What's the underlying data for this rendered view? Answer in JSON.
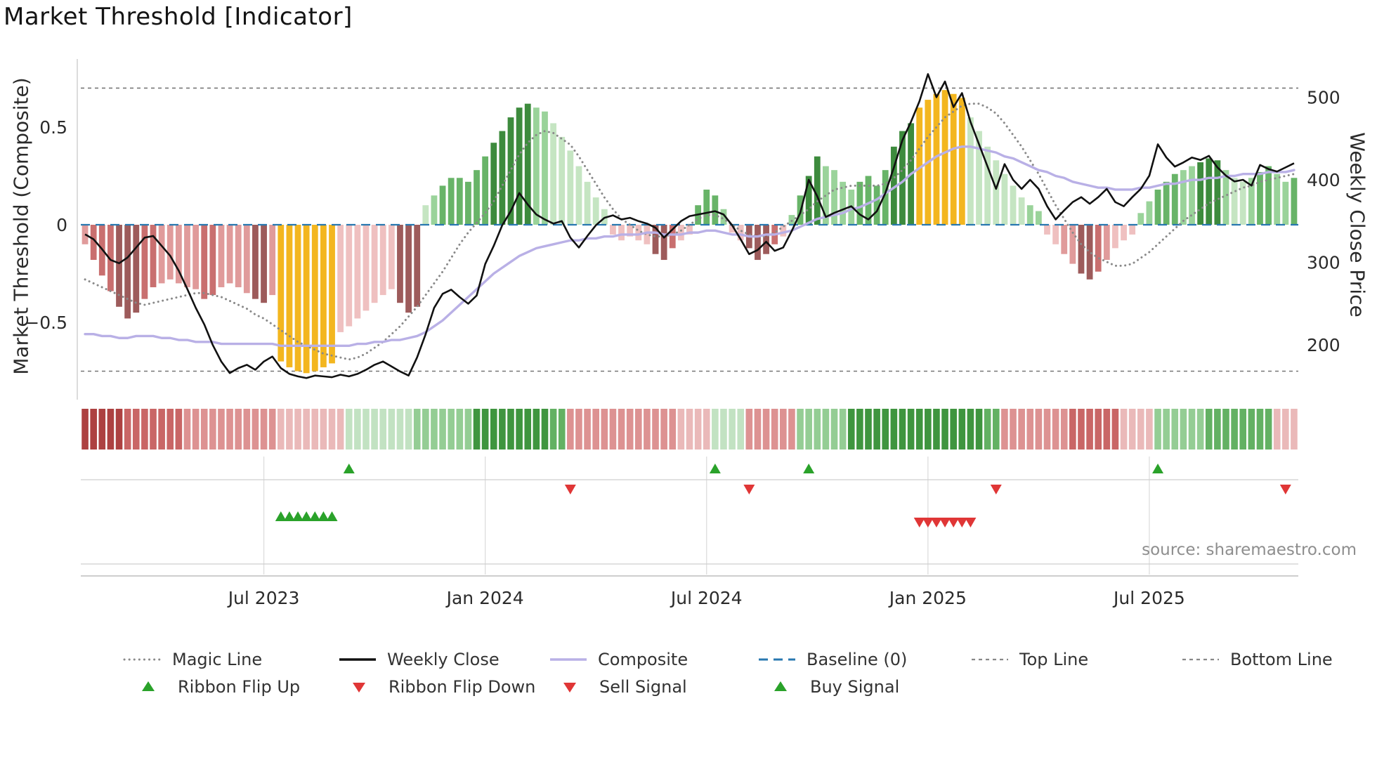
{
  "chart_data": {
    "type": "bar",
    "title": "Market Threshold [Indicator]",
    "source_text": "source: sharemaestro.com",
    "left_axis": {
      "label": "Market Threshold (Composite)",
      "ticks": [
        {
          "value": 0.5,
          "label": "0.5"
        },
        {
          "value": 0,
          "label": "0"
        },
        {
          "value": -0.5,
          "label": "−0.5"
        }
      ],
      "top_line": 0.7,
      "bottom_line": -0.75,
      "baseline": 0
    },
    "right_axis": {
      "label": "Weekly Close Price",
      "ticks": [
        {
          "value": 500,
          "label": "500"
        },
        {
          "value": 400,
          "label": "400"
        },
        {
          "value": 300,
          "label": "300"
        },
        {
          "value": 200,
          "label": "200"
        }
      ]
    },
    "x_ticks": [
      {
        "index": 21,
        "label": "Jul 2023"
      },
      {
        "index": 47,
        "label": "Jan 2024"
      },
      {
        "index": 73,
        "label": "Jul 2024"
      },
      {
        "index": 99,
        "label": "Jan 2025"
      },
      {
        "index": 125,
        "label": "Jul 2025"
      }
    ],
    "bar_palette": {
      "r1": "#efc0c0",
      "r2": "#e09b9b",
      "r3": "#c96f6f",
      "r4": "#9d5b5b",
      "g1": "#c5e5c2",
      "g2": "#9ad39a",
      "g3": "#68b468",
      "g4": "#3d8b3d",
      "gold": "#f3b61f"
    },
    "ribbon_palette": {
      "rr1": "#eab9b9",
      "rr2": "#dd9292",
      "rr3": "#c96666",
      "rr4": "#ad4141",
      "gg1": "#c2e2c2",
      "gg2": "#94cd94",
      "gg3": "#63b163",
      "gg4": "#3f953f"
    },
    "line_colors": {
      "weekly_close": "#111111",
      "composite": "#b9b0e6",
      "magic": "#8a8a8a",
      "baseline": "#2878b0",
      "top_bottom": "#777777"
    },
    "signal_colors": {
      "up": "#2aa22a",
      "down": "#e03636"
    },
    "bars": {
      "values": [
        -0.1,
        -0.18,
        -0.26,
        -0.34,
        -0.42,
        -0.48,
        -0.45,
        -0.38,
        -0.32,
        -0.3,
        -0.28,
        -0.3,
        -0.32,
        -0.33,
        -0.38,
        -0.36,
        -0.32,
        -0.3,
        -0.32,
        -0.35,
        -0.38,
        -0.4,
        -0.36,
        -0.7,
        -0.73,
        -0.75,
        -0.76,
        -0.75,
        -0.73,
        -0.71,
        -0.55,
        -0.52,
        -0.48,
        -0.44,
        -0.4,
        -0.36,
        -0.33,
        -0.4,
        -0.45,
        -0.42,
        0.1,
        0.15,
        0.2,
        0.24,
        0.24,
        0.22,
        0.28,
        0.35,
        0.42,
        0.48,
        0.55,
        0.6,
        0.62,
        0.6,
        0.58,
        0.52,
        0.45,
        0.38,
        0.3,
        0.22,
        0.14,
        0.08,
        -0.05,
        -0.08,
        -0.06,
        -0.08,
        -0.1,
        -0.15,
        -0.18,
        -0.12,
        -0.08,
        -0.05,
        0.1,
        0.18,
        0.15,
        0.08,
        -0.04,
        -0.08,
        -0.12,
        -0.18,
        -0.15,
        -0.1,
        -0.06,
        0.05,
        0.15,
        0.25,
        0.35,
        0.3,
        0.28,
        0.22,
        0.18,
        0.22,
        0.25,
        0.2,
        0.28,
        0.4,
        0.48,
        0.52,
        0.6,
        0.64,
        0.67,
        0.69,
        0.67,
        0.65,
        0.55,
        0.48,
        0.4,
        0.33,
        0.26,
        0.2,
        0.14,
        0.1,
        0.07,
        -0.05,
        -0.1,
        -0.15,
        -0.2,
        -0.25,
        -0.28,
        -0.24,
        -0.18,
        -0.12,
        -0.08,
        -0.05,
        0.06,
        0.12,
        0.18,
        0.22,
        0.26,
        0.28,
        0.3,
        0.32,
        0.34,
        0.33,
        0.28,
        0.24,
        0.22,
        0.24,
        0.27,
        0.3,
        0.26,
        0.22,
        0.24
      ],
      "colors": [
        "r2",
        "r3",
        "r3",
        "r3",
        "r4",
        "r4",
        "r4",
        "r3",
        "r3",
        "r2",
        "r2",
        "r2",
        "r2",
        "r2",
        "r3",
        "r3",
        "r2",
        "r2",
        "r2",
        "r2",
        "r4",
        "r4",
        "r2",
        "gold",
        "gold",
        "gold",
        "gold",
        "gold",
        "gold",
        "gold",
        "r1",
        "r1",
        "r1",
        "r1",
        "r1",
        "r1",
        "r1",
        "r4",
        "r4",
        "r4",
        "g1",
        "g2",
        "g3",
        "g3",
        "g3",
        "g3",
        "g3",
        "g3",
        "g4",
        "g4",
        "g4",
        "g4",
        "g4",
        "g2",
        "g2",
        "g1",
        "g1",
        "g1",
        "g1",
        "g1",
        "g1",
        "g1",
        "r1",
        "r1",
        "r1",
        "r1",
        "r1",
        "r4",
        "r4",
        "r3",
        "r1",
        "r1",
        "g3",
        "g3",
        "g3",
        "g2",
        "r1",
        "r1",
        "r4",
        "r4",
        "r4",
        "r3",
        "r1",
        "g2",
        "g3",
        "g4",
        "g4",
        "g2",
        "g2",
        "g2",
        "g2",
        "g3",
        "g3",
        "g3",
        "g3",
        "g4",
        "g4",
        "g4",
        "gold",
        "gold",
        "gold",
        "gold",
        "gold",
        "gold",
        "g1",
        "g1",
        "g1",
        "g1",
        "g1",
        "g1",
        "g1",
        "g2",
        "g2",
        "r1",
        "r1",
        "r2",
        "r2",
        "r4",
        "r4",
        "r3",
        "r2",
        "r1",
        "r1",
        "r1",
        "g2",
        "g2",
        "g3",
        "g3",
        "g3",
        "g2",
        "g2",
        "g4",
        "g4",
        "g4",
        "g2",
        "g1",
        "g1",
        "g2",
        "g3",
        "g3",
        "g2",
        "g2",
        "g3"
      ]
    },
    "weekly_close": [
      334,
      328,
      316,
      303,
      299,
      306,
      318,
      330,
      332,
      320,
      308,
      290,
      268,
      245,
      225,
      200,
      180,
      166,
      172,
      176,
      170,
      180,
      186,
      172,
      165,
      162,
      160,
      163,
      162,
      161,
      164,
      162,
      165,
      170,
      176,
      180,
      174,
      168,
      163,
      185,
      213,
      245,
      262,
      267,
      258,
      250,
      260,
      298,
      320,
      345,
      362,
      384,
      370,
      358,
      352,
      347,
      350,
      330,
      318,
      332,
      345,
      354,
      357,
      352,
      354,
      350,
      347,
      342,
      330,
      340,
      350,
      356,
      358,
      360,
      362,
      358,
      345,
      328,
      310,
      315,
      325,
      314,
      318,
      338,
      360,
      400,
      380,
      355,
      360,
      364,
      368,
      358,
      352,
      362,
      384,
      415,
      448,
      470,
      495,
      528,
      500,
      519,
      488,
      505,
      470,
      443,
      416,
      389,
      419,
      400,
      389,
      400,
      389,
      368,
      352,
      363,
      373,
      379,
      371,
      379,
      389,
      373,
      368,
      379,
      389,
      405,
      443,
      427,
      416,
      421,
      427,
      424,
      429,
      415,
      405,
      398,
      400,
      393,
      418,
      413,
      410,
      415,
      420
    ],
    "composite": [
      -0.56,
      -0.56,
      -0.57,
      -0.57,
      -0.58,
      -0.58,
      -0.57,
      -0.57,
      -0.57,
      -0.58,
      -0.58,
      -0.59,
      -0.59,
      -0.6,
      -0.6,
      -0.6,
      -0.61,
      -0.61,
      -0.61,
      -0.61,
      -0.61,
      -0.61,
      -0.61,
      -0.62,
      -0.62,
      -0.62,
      -0.62,
      -0.62,
      -0.62,
      -0.62,
      -0.62,
      -0.62,
      -0.61,
      -0.61,
      -0.6,
      -0.6,
      -0.59,
      -0.59,
      -0.58,
      -0.57,
      -0.55,
      -0.52,
      -0.49,
      -0.45,
      -0.41,
      -0.37,
      -0.33,
      -0.29,
      -0.25,
      -0.22,
      -0.19,
      -0.16,
      -0.14,
      -0.12,
      -0.11,
      -0.1,
      -0.09,
      -0.08,
      -0.08,
      -0.07,
      -0.07,
      -0.06,
      -0.06,
      -0.05,
      -0.05,
      -0.05,
      -0.04,
      -0.04,
      -0.05,
      -0.05,
      -0.05,
      -0.04,
      -0.04,
      -0.03,
      -0.03,
      -0.04,
      -0.05,
      -0.05,
      -0.06,
      -0.06,
      -0.05,
      -0.05,
      -0.04,
      -0.03,
      -0.01,
      0.01,
      0.03,
      0.04,
      0.05,
      0.06,
      0.08,
      0.09,
      0.11,
      0.13,
      0.16,
      0.19,
      0.22,
      0.26,
      0.29,
      0.32,
      0.35,
      0.37,
      0.39,
      0.4,
      0.4,
      0.39,
      0.38,
      0.37,
      0.35,
      0.34,
      0.32,
      0.3,
      0.28,
      0.27,
      0.25,
      0.24,
      0.22,
      0.21,
      0.2,
      0.19,
      0.19,
      0.18,
      0.18,
      0.18,
      0.19,
      0.19,
      0.2,
      0.21,
      0.21,
      0.22,
      0.23,
      0.23,
      0.24,
      0.24,
      0.25,
      0.25,
      0.26,
      0.26,
      0.26,
      0.27,
      0.27,
      0.27,
      0.28
    ],
    "magic_line": [
      -0.28,
      -0.3,
      -0.32,
      -0.34,
      -0.36,
      -0.38,
      -0.4,
      -0.41,
      -0.4,
      -0.39,
      -0.38,
      -0.37,
      -0.36,
      -0.35,
      -0.35,
      -0.36,
      -0.37,
      -0.39,
      -0.41,
      -0.43,
      -0.46,
      -0.48,
      -0.51,
      -0.54,
      -0.57,
      -0.6,
      -0.62,
      -0.64,
      -0.66,
      -0.67,
      -0.68,
      -0.69,
      -0.68,
      -0.66,
      -0.63,
      -0.6,
      -0.56,
      -0.52,
      -0.47,
      -0.42,
      -0.36,
      -0.3,
      -0.24,
      -0.17,
      -0.1,
      -0.04,
      0.01,
      0.06,
      0.12,
      0.2,
      0.28,
      0.36,
      0.42,
      0.46,
      0.48,
      0.47,
      0.44,
      0.41,
      0.35,
      0.28,
      0.21,
      0.14,
      0.08,
      0.03,
      0.0,
      -0.03,
      -0.05,
      -0.06,
      -0.06,
      -0.05,
      -0.03,
      0.0,
      0.03,
      0.05,
      0.05,
      0.03,
      0.0,
      -0.03,
      -0.05,
      -0.06,
      -0.06,
      -0.04,
      -0.01,
      0.02,
      0.05,
      0.08,
      0.12,
      0.15,
      0.18,
      0.19,
      0.2,
      0.2,
      0.2,
      0.2,
      0.21,
      0.24,
      0.28,
      0.33,
      0.39,
      0.45,
      0.5,
      0.55,
      0.58,
      0.61,
      0.62,
      0.62,
      0.6,
      0.57,
      0.52,
      0.46,
      0.4,
      0.33,
      0.26,
      0.18,
      0.1,
      0.03,
      -0.04,
      -0.1,
      -0.14,
      -0.17,
      -0.19,
      -0.21,
      -0.21,
      -0.2,
      -0.17,
      -0.14,
      -0.1,
      -0.06,
      -0.02,
      0.02,
      0.05,
      0.08,
      0.11,
      0.13,
      0.15,
      0.17,
      0.19,
      0.2,
      0.22,
      0.23,
      0.24,
      0.25,
      0.26
    ],
    "ribbon_runs": [
      [
        "rr4",
        5
      ],
      [
        "rr3",
        7
      ],
      [
        "rr2",
        11
      ],
      [
        "rr1",
        8
      ],
      [
        "gg1",
        8
      ],
      [
        "gg2",
        7
      ],
      [
        "gg4",
        9
      ],
      [
        "gg3",
        2
      ],
      [
        "rr2",
        13
      ],
      [
        "rr1",
        4
      ],
      [
        "gg1",
        4
      ],
      [
        "rr2",
        6
      ],
      [
        "gg2",
        6
      ],
      [
        "gg4",
        16
      ],
      [
        "gg3",
        2
      ],
      [
        "rr2",
        8
      ],
      [
        "rr3",
        6
      ],
      [
        "rr1",
        4
      ],
      [
        "gg2",
        6
      ],
      [
        "gg3",
        8
      ],
      [
        "rr1",
        3
      ]
    ],
    "signals": {
      "ribbon_flip_up": [
        31,
        74,
        85,
        126
      ],
      "ribbon_flip_down": [
        57,
        78,
        107,
        141
      ],
      "buy": [
        23,
        24,
        25,
        26,
        27,
        28,
        29
      ],
      "sell": [
        98,
        99,
        100,
        101,
        102,
        103,
        104
      ]
    },
    "legend": [
      {
        "label": "Magic Line",
        "type": "line",
        "style": "dotted",
        "color": "#8a8a8a"
      },
      {
        "label": "Weekly Close",
        "type": "line",
        "style": "solid",
        "color": "#111111"
      },
      {
        "label": "Composite",
        "type": "line",
        "style": "solid",
        "color": "#b9b0e6"
      },
      {
        "label": "Baseline (0)",
        "type": "line",
        "style": "dashed",
        "color": "#2878b0"
      },
      {
        "label": "Top Line",
        "type": "line",
        "style": "dashed-small",
        "color": "#888888"
      },
      {
        "label": "Bottom Line",
        "type": "line",
        "style": "dashed-small",
        "color": "#888888"
      },
      {
        "label": "Ribbon Flip Up",
        "type": "triangle-up",
        "color": "#2aa22a"
      },
      {
        "label": "Ribbon Flip Down",
        "type": "triangle-down",
        "color": "#e03636"
      },
      {
        "label": "Sell Signal",
        "type": "triangle-down",
        "color": "#e03636"
      },
      {
        "label": "Buy Signal",
        "type": "triangle-up",
        "color": "#2aa22a"
      }
    ]
  }
}
